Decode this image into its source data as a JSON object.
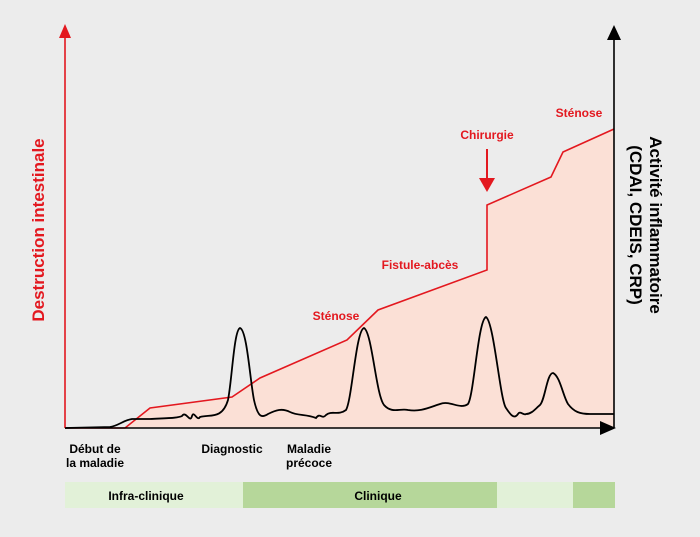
{
  "axes": {
    "left_label": "Destruction intestinale",
    "right_label_line1": "Activité inflammatoire",
    "right_label_line2": "(CDAI, CDEIS, CRP)"
  },
  "events": {
    "stenose_1": "Sténose",
    "fistule": "Fistule-abcès",
    "chirurgie": "Chirurgie",
    "stenose_2": "Sténose"
  },
  "timeline": {
    "debut_line1": "Début de",
    "debut_line2": "la maladie",
    "diagnostic": "Diagnostic",
    "maladie_line1": "Maladie",
    "maladie_line2": "précoce"
  },
  "phases": {
    "infra": "Infra-clinique",
    "clinique": "Clinique"
  },
  "colors": {
    "background": "#ececec",
    "destruction_line": "#e3181f",
    "destruction_fill": "#fbe0d6",
    "activity_line": "#000000",
    "phase_light": "#e2f1d8",
    "phase_dark": "#b6d79a"
  }
}
